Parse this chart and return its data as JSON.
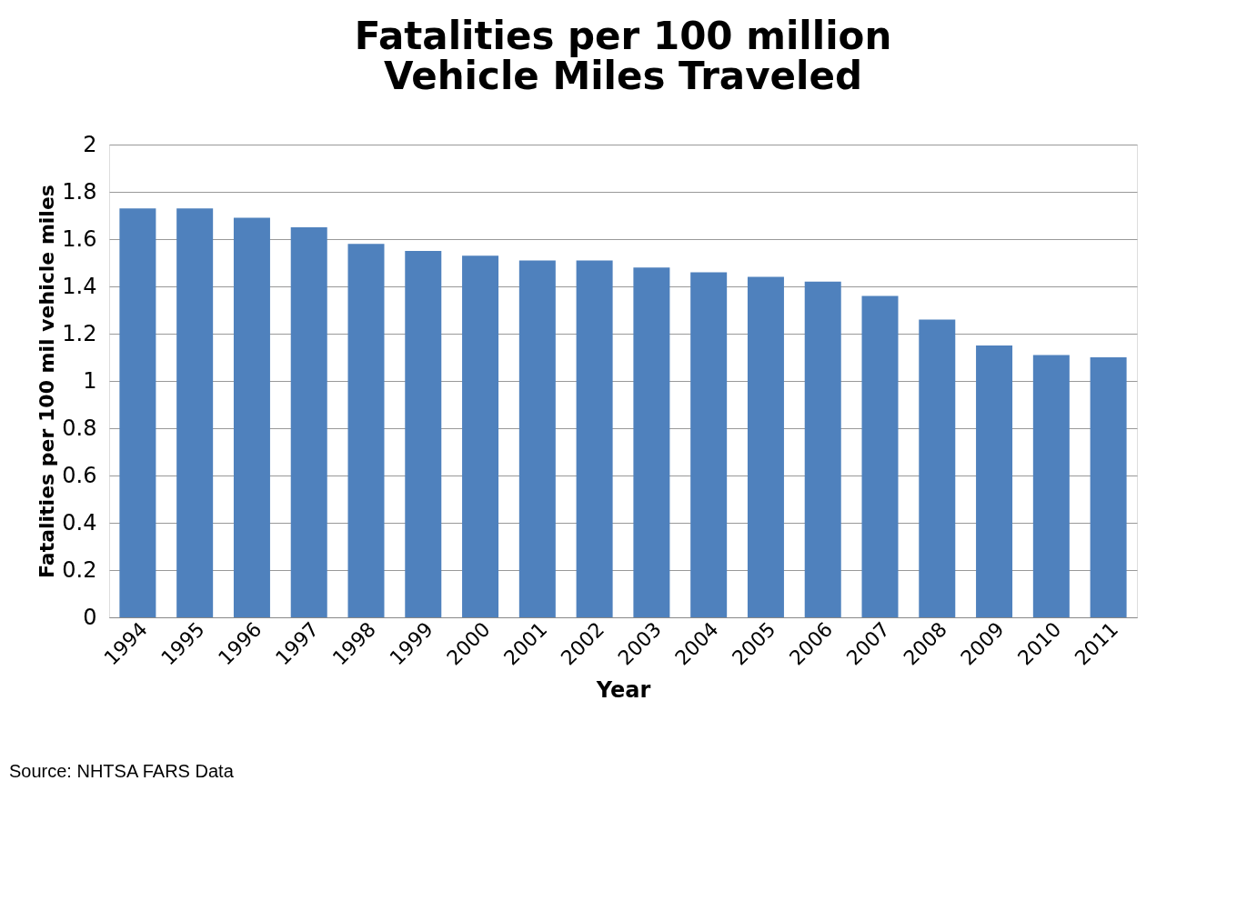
{
  "chart_data": {
    "type": "bar",
    "title": [
      "Fatalities per 100 million",
      "Vehicle Miles Traveled"
    ],
    "xlabel": "Year",
    "ylabel": "Fatalities per 100 mil vehicle miles",
    "categories": [
      "1994",
      "1995",
      "1996",
      "1997",
      "1998",
      "1999",
      "2000",
      "2001",
      "2002",
      "2003",
      "2004",
      "2005",
      "2006",
      "2007",
      "2008",
      "2009",
      "2010",
      "2011"
    ],
    "values": [
      1.73,
      1.73,
      1.69,
      1.65,
      1.58,
      1.55,
      1.53,
      1.51,
      1.51,
      1.48,
      1.46,
      1.44,
      1.42,
      1.36,
      1.26,
      1.15,
      1.11,
      1.1
    ],
    "color": "#4f81bd",
    "ylim": [
      0,
      2
    ],
    "yticks": [
      0,
      0.2,
      0.4,
      0.6,
      0.8,
      1,
      1.2,
      1.4,
      1.6,
      1.8,
      2
    ],
    "grid": "y",
    "annotations": [
      "Source:  NHTSA FARS Data"
    ]
  }
}
